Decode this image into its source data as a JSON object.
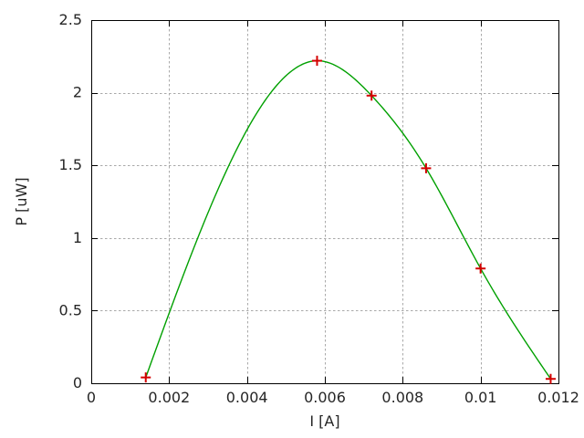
{
  "chart_data": {
    "type": "line",
    "title": "",
    "xlabel": "I [A]",
    "ylabel": "P [uW]",
    "x": [
      0.0014,
      0.0058,
      0.0072,
      0.0086,
      0.01,
      0.0118
    ],
    "y": [
      0.04,
      2.22,
      1.98,
      1.48,
      0.79,
      0.03
    ],
    "xlim": [
      0,
      0.012
    ],
    "ylim": [
      0,
      2.5
    ],
    "xticks": {
      "values": [
        0,
        0.002,
        0.004,
        0.006,
        0.008,
        0.01,
        0.012
      ],
      "labels": [
        "0",
        "0.002",
        "0.004",
        "0.006",
        "0.008",
        "0.01",
        "0.012"
      ]
    },
    "yticks": {
      "values": [
        0,
        0.5,
        1,
        1.5,
        2,
        2.5
      ],
      "labels": [
        "0",
        "0.5",
        "1",
        "1.5",
        "2",
        "2.5"
      ]
    },
    "grid": "dotted",
    "legend": "none",
    "line_style": "smooth-cspline",
    "marker": "plus",
    "colors": {
      "line": "#00a000",
      "marker": "#d40000",
      "grid": "#a9a9a9",
      "axis": "#000000",
      "text": "#262626",
      "background": "#ffffff"
    }
  }
}
